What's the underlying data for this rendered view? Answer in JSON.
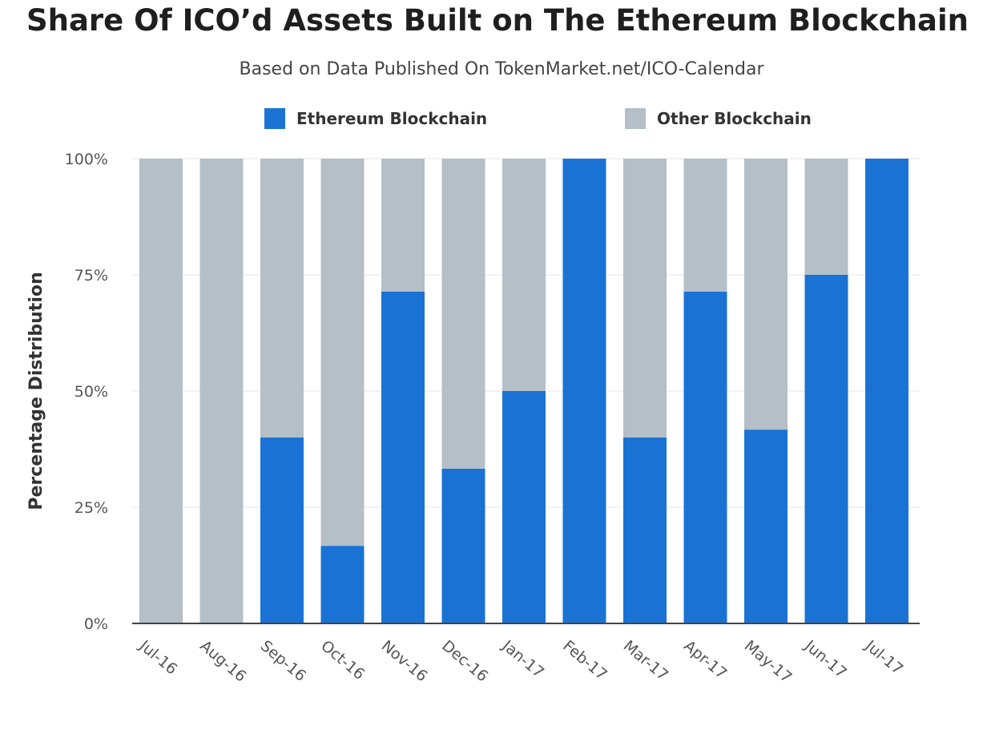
{
  "chart_data": {
    "type": "bar",
    "stacked": true,
    "title": "Share Of ICO’d Assets Built on The Ethereum Blockchain",
    "subtitle": "Based on Data Published On TokenMarket.net/ICO-Calendar",
    "xlabel": "",
    "ylabel": "Percentage Distribution",
    "ylim": [
      0,
      100
    ],
    "y_ticks": [
      "0%",
      "25%",
      "50%",
      "75%",
      "100%"
    ],
    "y_tick_values": [
      0,
      25,
      50,
      75,
      100
    ],
    "grid": true,
    "legend_position": "top",
    "categories": [
      "Jul-16",
      "Aug-16",
      "Sep-16",
      "Oct-16",
      "Nov-16",
      "Dec-16",
      "Jan-17",
      "Feb-17",
      "Mar-17",
      "Apr-17",
      "May-17",
      "Jun-17",
      "Jul-17"
    ],
    "series": [
      {
        "name": "Ethereum Blockchain",
        "color": "#1a73d4",
        "values": [
          0,
          0,
          40,
          16.7,
          71.4,
          33.3,
          50,
          100,
          40,
          71.4,
          41.7,
          75,
          100
        ]
      },
      {
        "name": "Other Blockchain",
        "color": "#b4bfc7",
        "values": [
          100,
          100,
          60,
          83.3,
          28.6,
          66.7,
          50,
          0,
          60,
          28.6,
          58.3,
          25,
          0
        ]
      }
    ]
  }
}
